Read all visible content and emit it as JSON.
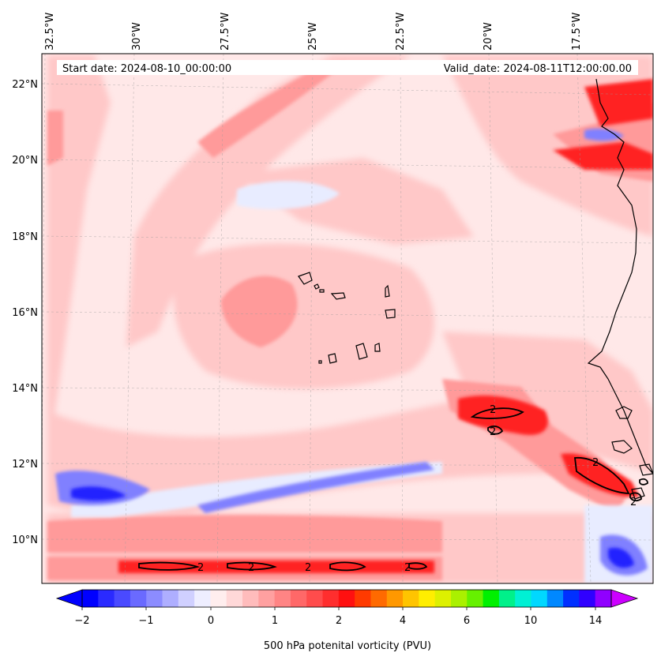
{
  "map": {
    "start_date_text": "Start date: 2024-08-10_00:00:00",
    "valid_date_text": "Valid_date: 2024-08-11T12:00:00.00",
    "lon_labels": [
      "32.5°W",
      "30°W",
      "27.5°W",
      "25°W",
      "22.5°W",
      "20°W",
      "17.5°W"
    ],
    "lat_labels": [
      "22°N",
      "20°N",
      "18°N",
      "16°N",
      "14°N",
      "12°N",
      "10°N"
    ],
    "contour_label": "2",
    "colors": {
      "background": "#ffe8e8",
      "light_pink": "#ffc8c8",
      "medium_red": "#ff9a9a",
      "strong_red": "#ff2020",
      "light_blue": "#e8ecff",
      "medium_blue": "#8080ff",
      "strong_blue": "#2020ff",
      "coastline": "#000000"
    }
  },
  "colorbar": {
    "label": "500 hPa potenital vorticity (PVU)",
    "tick_labels": [
      "−2",
      "−1",
      "0",
      "1",
      "2",
      "4",
      "6",
      "10",
      "14"
    ],
    "colors": [
      "#0000ff",
      "#2a2aff",
      "#4a4aff",
      "#6a6aff",
      "#8c8cff",
      "#aeaeff",
      "#d0d0ff",
      "#eeeeff",
      "#ffeeee",
      "#ffd8d8",
      "#ffbcbc",
      "#ffa0a0",
      "#ff8484",
      "#ff6868",
      "#ff4c4c",
      "#ff2e2e",
      "#ff1010",
      "#ff3a00",
      "#ff6a00",
      "#ff9800",
      "#ffc400",
      "#ffee00",
      "#ddf000",
      "#aaf000",
      "#66f000",
      "#00f000",
      "#00f08a",
      "#00f0d4",
      "#00d8ff",
      "#0088ff",
      "#0030ff",
      "#3000ff",
      "#9000ff"
    ],
    "min_extend_color": "#0000ff",
    "max_extend_color": "#cc00ff"
  }
}
